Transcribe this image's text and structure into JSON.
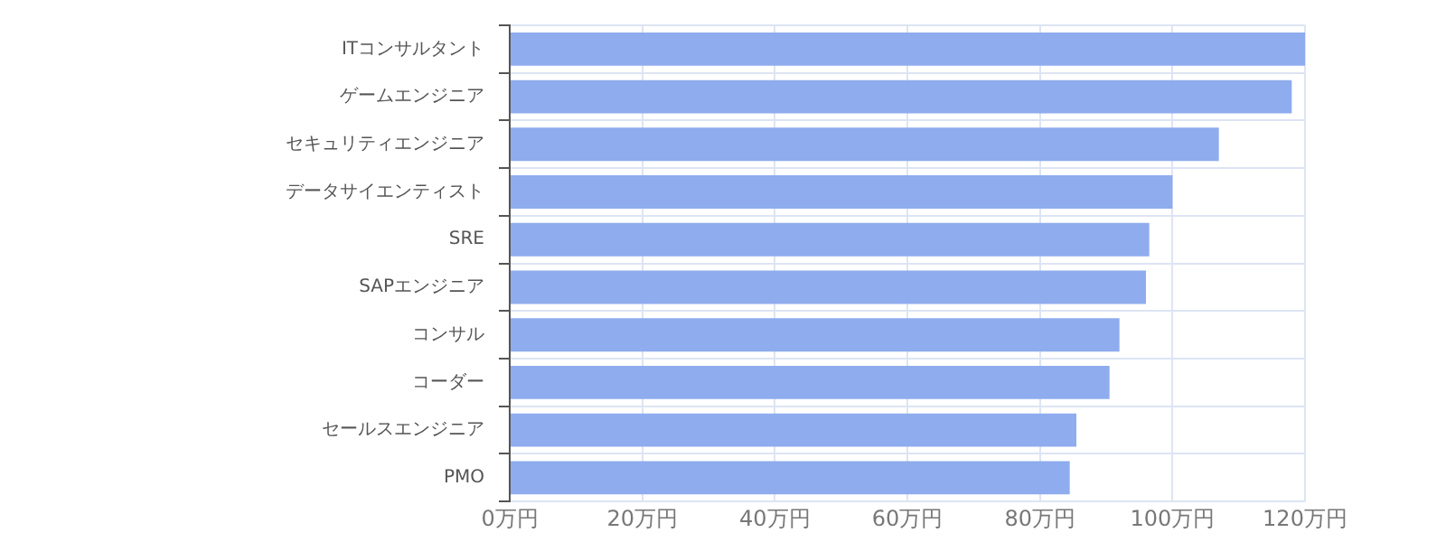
{
  "chart_data": {
    "type": "bar",
    "orientation": "horizontal",
    "categories": [
      "ITコンサルタント",
      "ゲームエンジニア",
      "セキュリティエンジニア",
      "データサイエンティスト",
      "SRE",
      "SAPエンジニア",
      "コンサル",
      "コーダー",
      "セールスエンジニア",
      "PMO"
    ],
    "values": [
      120,
      118,
      107,
      100,
      96.5,
      96,
      92,
      90.5,
      85.5,
      84.5
    ],
    "color": "#8eacee",
    "xlim": [
      0,
      120
    ],
    "xticks": [
      {
        "value": 0,
        "label": "0万円"
      },
      {
        "value": 20,
        "label": "20万円"
      },
      {
        "value": 40,
        "label": "40万円"
      },
      {
        "value": 60,
        "label": "60万円"
      },
      {
        "value": 80,
        "label": "80万円"
      },
      {
        "value": 100,
        "label": "100万円"
      },
      {
        "value": 120,
        "label": "120万円"
      }
    ],
    "grid": true,
    "legend": false
  }
}
